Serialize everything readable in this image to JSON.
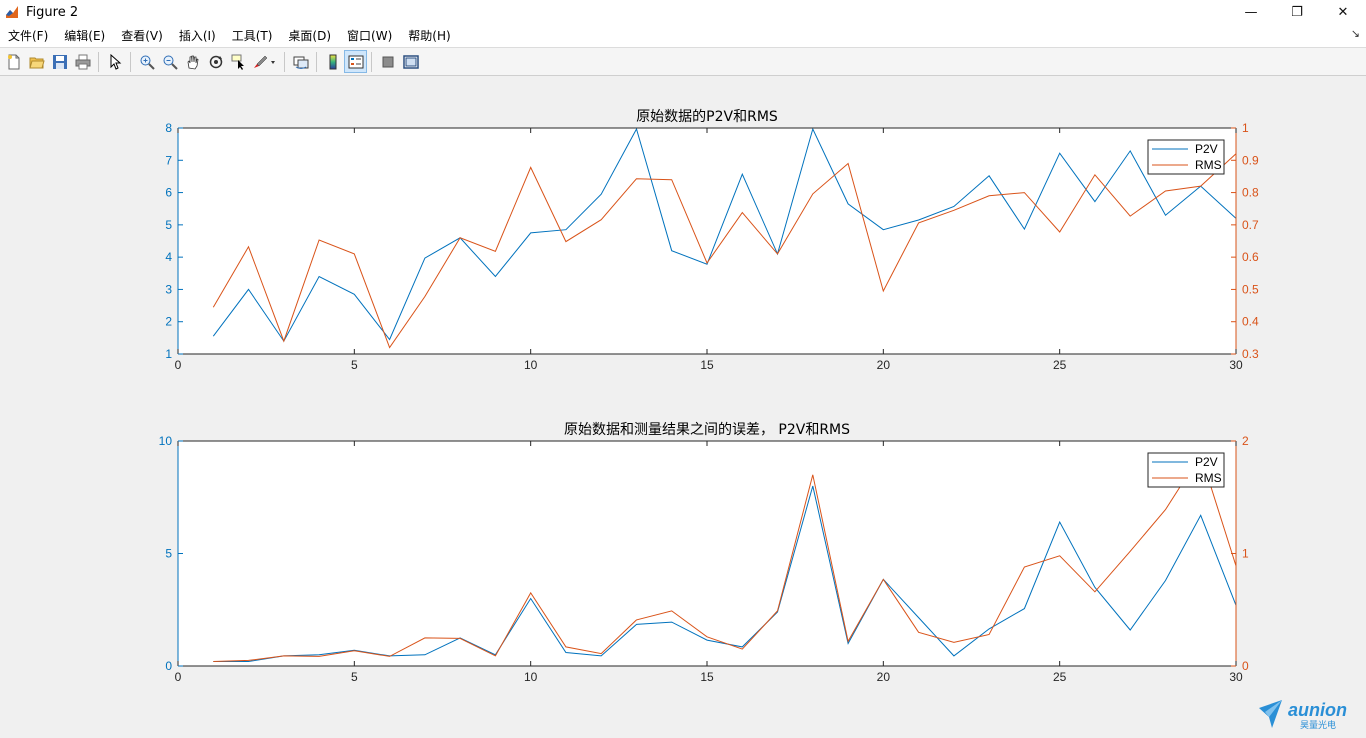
{
  "window": {
    "title": "Figure 2",
    "minimize_glyph": "—",
    "maximize_glyph": "❐",
    "close_glyph": "✕"
  },
  "menu": {
    "items": [
      {
        "label": "文件(F)"
      },
      {
        "label": "编辑(E)"
      },
      {
        "label": "查看(V)"
      },
      {
        "label": "插入(I)"
      },
      {
        "label": "工具(T)"
      },
      {
        "label": "桌面(D)"
      },
      {
        "label": "窗口(W)"
      },
      {
        "label": "帮助(H)"
      }
    ],
    "expand_glyph": "↘"
  },
  "toolbar": {
    "icons": [
      "new-figure-icon",
      "open-file-icon",
      "save-icon",
      "print-icon",
      "edit-plot-arrow-icon",
      "zoom-in-icon",
      "zoom-out-icon",
      "pan-hand-icon",
      "rotate-3d-icon",
      "data-cursor-icon",
      "brush-icon",
      "link-plot-icon",
      "insert-colorbar-icon",
      "insert-legend-icon",
      "hide-plot-tools-icon",
      "show-plot-tools-icon"
    ]
  },
  "colors": {
    "p2v": "#0072BD",
    "rms": "#D95319",
    "axis": "#262626",
    "background": "#f0f0f0",
    "plot_bg": "#ffffff",
    "watermark": "#2a8fd6"
  },
  "watermark": {
    "brand": "aunion",
    "sub": "昊量光电"
  },
  "chart_data": [
    {
      "type": "line",
      "title": "原始数据的P2V和RMS",
      "xlim": [
        0,
        30
      ],
      "xticks": [
        0,
        5,
        10,
        15,
        20,
        25,
        30
      ],
      "y_left_lim": [
        1,
        8
      ],
      "y_left_ticks": [
        1,
        2,
        3,
        4,
        5,
        6,
        7,
        8
      ],
      "y_right_lim": [
        0.3,
        1
      ],
      "y_right_ticks": [
        0.3,
        0.4,
        0.5,
        0.6,
        0.7,
        0.8,
        0.9,
        1
      ],
      "tick_labels_right": [
        "0.3",
        "0.4",
        "0.5",
        "0.6",
        "0.7",
        "0.8",
        "0.9",
        "1"
      ],
      "legend": {
        "position": "top-right",
        "entries": [
          "P2V",
          "RMS"
        ]
      },
      "x": [
        1,
        2,
        3,
        4,
        5,
        6,
        7,
        8,
        9,
        10,
        11,
        12,
        13,
        14,
        15,
        16,
        17,
        18,
        19,
        20,
        21,
        22,
        23,
        24,
        25,
        26,
        27,
        28,
        29,
        30
      ],
      "series": [
        {
          "name": "P2V",
          "axis": "left",
          "values": [
            1.55,
            3.0,
            1.4,
            3.4,
            2.85,
            1.45,
            3.97,
            4.6,
            3.4,
            4.75,
            4.85,
            5.95,
            7.97,
            4.2,
            3.78,
            6.57,
            4.1,
            7.97,
            5.65,
            4.85,
            5.15,
            5.57,
            6.52,
            4.87,
            7.22,
            5.72,
            7.29,
            5.3,
            6.2,
            5.2
          ]
        },
        {
          "name": "RMS",
          "axis": "right",
          "values": [
            0.445,
            0.632,
            0.34,
            0.653,
            0.61,
            0.32,
            0.478,
            0.66,
            0.618,
            0.878,
            0.648,
            0.716,
            0.843,
            0.84,
            0.582,
            0.738,
            0.61,
            0.796,
            0.89,
            0.495,
            0.706,
            0.745,
            0.79,
            0.8,
            0.678,
            0.855,
            0.727,
            0.805,
            0.82,
            0.92
          ]
        }
      ]
    },
    {
      "type": "line",
      "title": "原始数据和测量结果之间的误差， P2V和RMS",
      "xlim": [
        0,
        30
      ],
      "xticks": [
        0,
        5,
        10,
        15,
        20,
        25,
        30
      ],
      "y_left_lim": [
        0,
        10
      ],
      "y_left_ticks": [
        0,
        5,
        10
      ],
      "y_right_lim": [
        0,
        2
      ],
      "y_right_ticks": [
        0,
        1,
        2
      ],
      "tick_labels_right": [
        "0",
        "1",
        "2"
      ],
      "legend": {
        "position": "top-right",
        "entries": [
          "P2V",
          "RMS"
        ]
      },
      "x": [
        1,
        2,
        3,
        4,
        5,
        6,
        7,
        8,
        9,
        10,
        11,
        12,
        13,
        14,
        15,
        16,
        17,
        18,
        19,
        20,
        21,
        22,
        23,
        24,
        25,
        26,
        27,
        28,
        29,
        30
      ],
      "series": [
        {
          "name": "P2V",
          "axis": "left",
          "values": [
            0.2,
            0.2,
            0.45,
            0.5,
            0.7,
            0.45,
            0.5,
            1.25,
            0.5,
            3.0,
            0.6,
            0.45,
            1.85,
            1.95,
            1.15,
            0.85,
            2.4,
            8.0,
            1.0,
            3.85,
            2.15,
            0.45,
            1.65,
            2.55,
            6.4,
            3.5,
            1.6,
            3.8,
            6.7,
            2.7
          ]
        },
        {
          "name": "RMS",
          "axis": "right",
          "values": [
            0.04,
            0.05,
            0.09,
            0.085,
            0.135,
            0.085,
            0.25,
            0.245,
            0.09,
            0.65,
            0.17,
            0.11,
            0.41,
            0.49,
            0.26,
            0.15,
            0.49,
            1.7,
            0.22,
            0.77,
            0.3,
            0.21,
            0.28,
            0.88,
            0.98,
            0.66,
            1.02,
            1.39,
            1.88,
            0.89
          ]
        }
      ]
    }
  ]
}
